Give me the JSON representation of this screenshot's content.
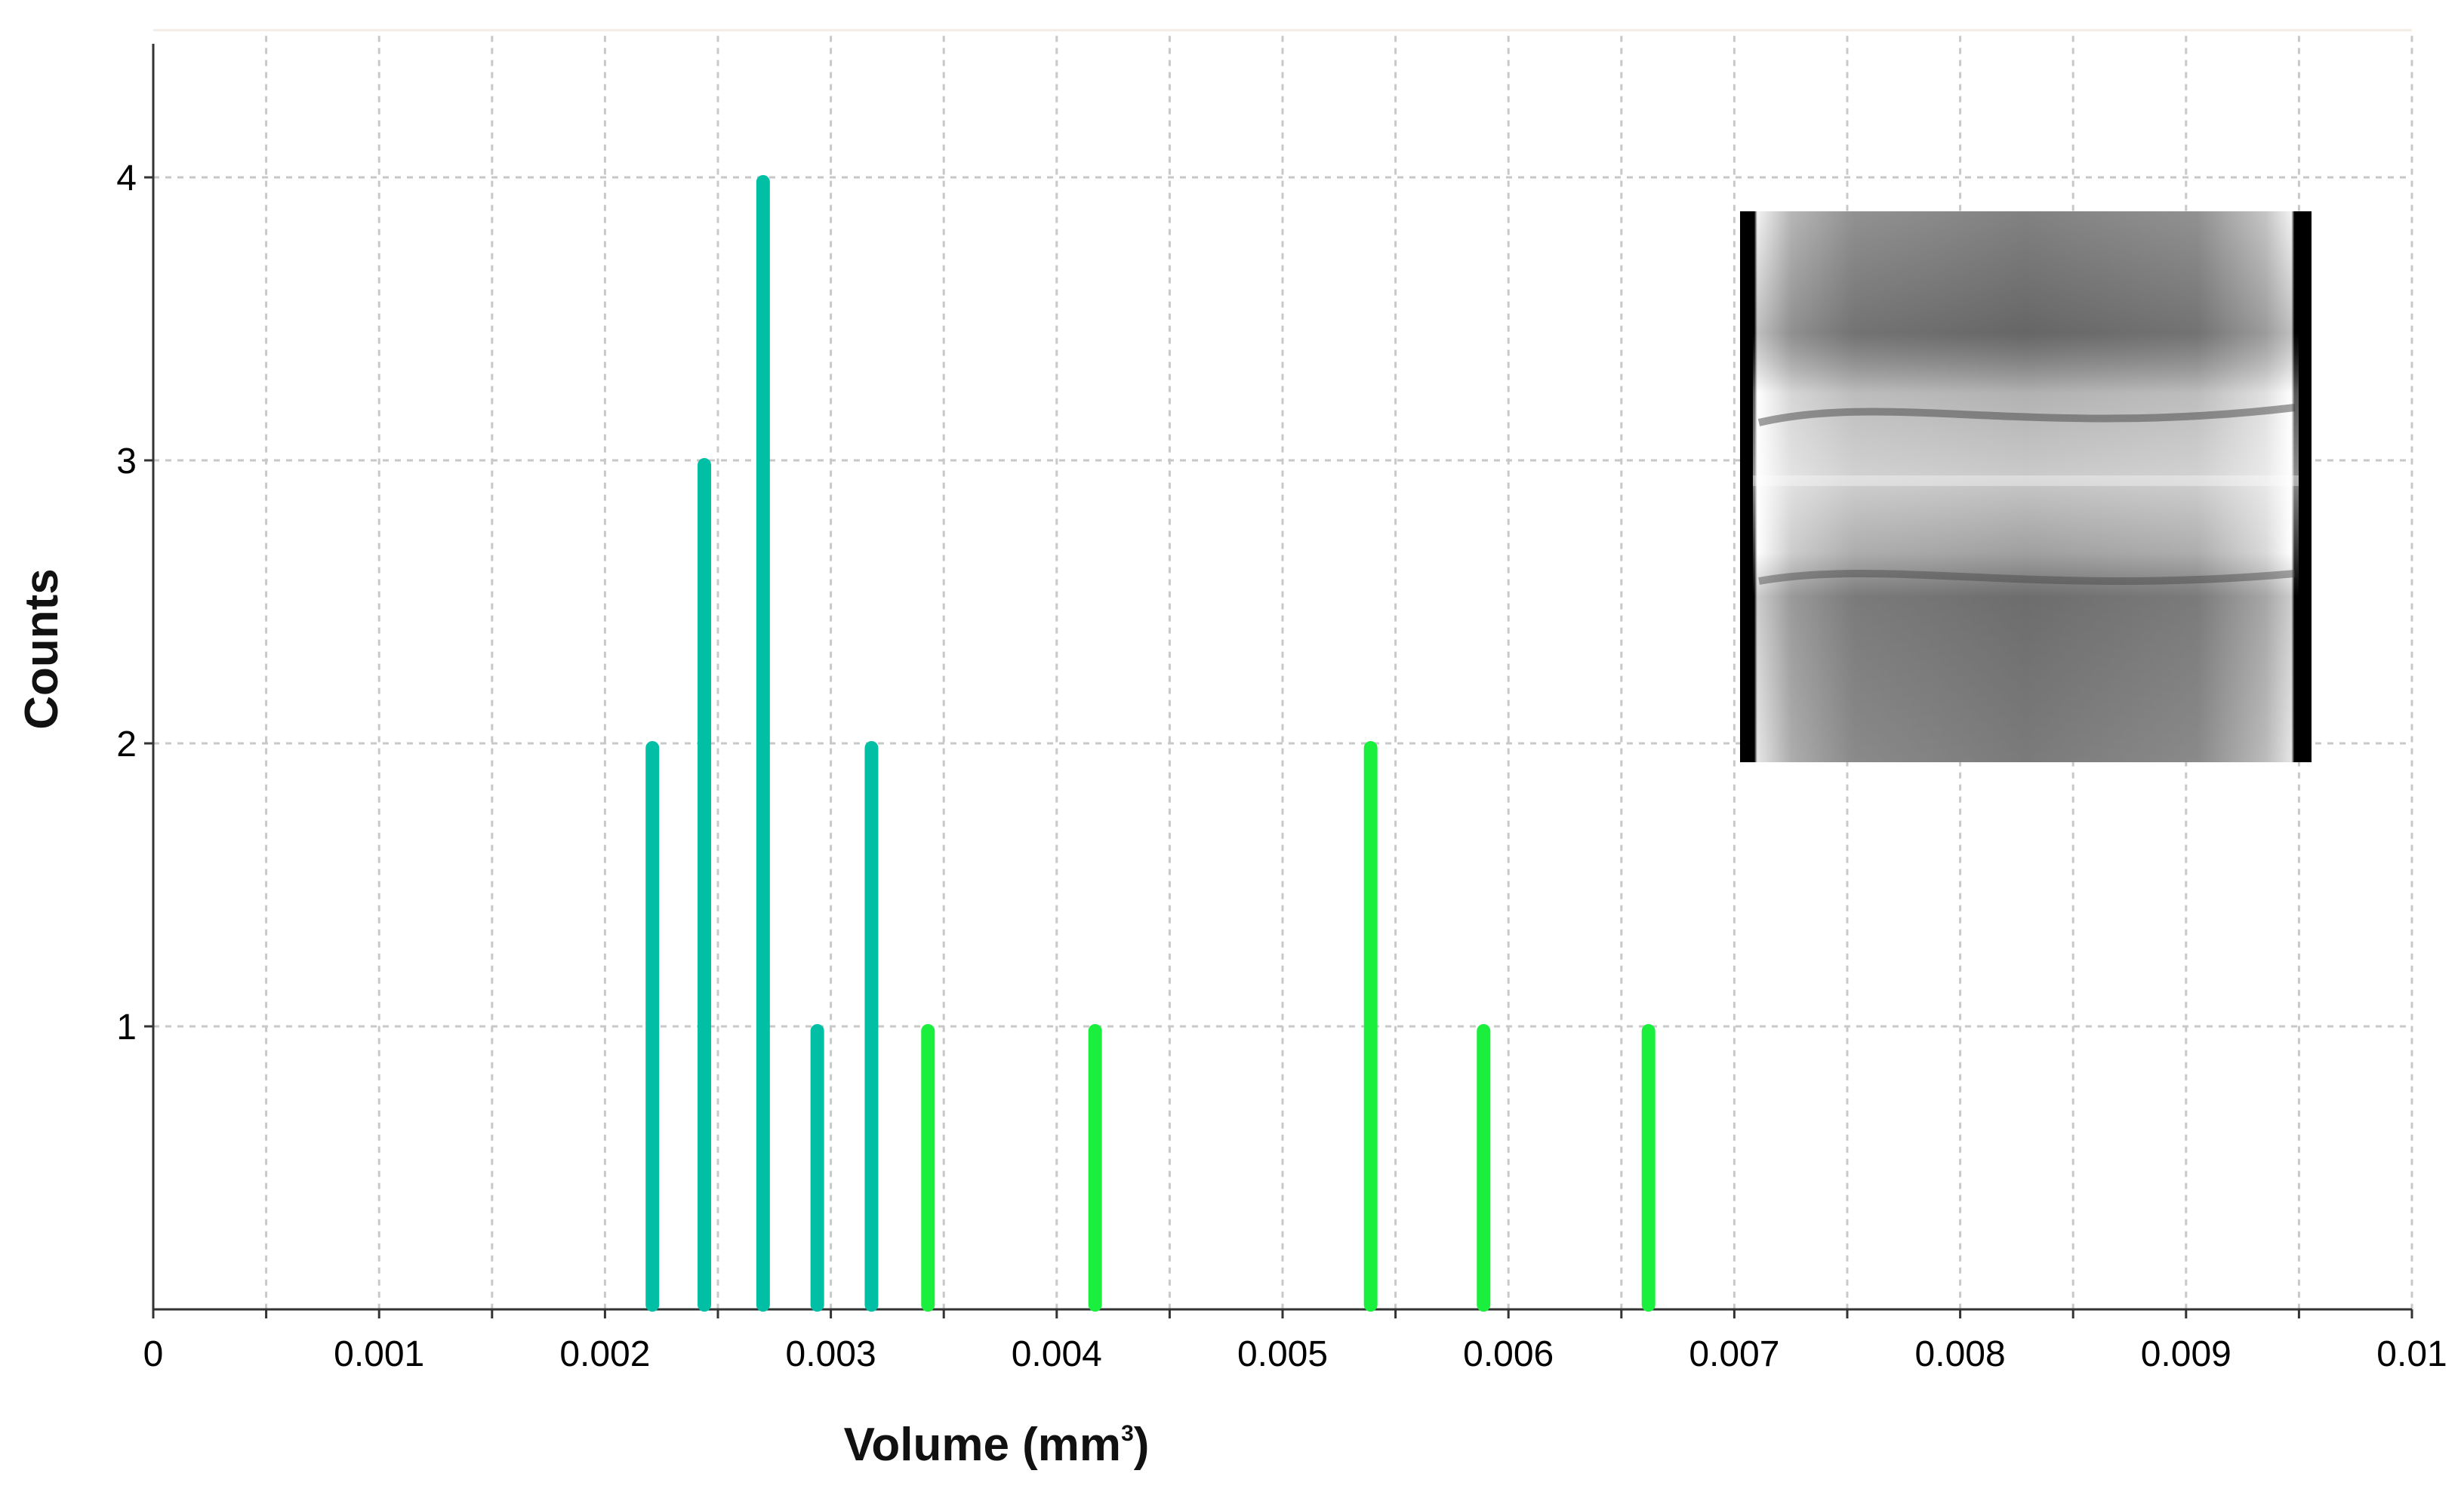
{
  "chart_data": {
    "type": "bar",
    "title": "",
    "xlabel": "Volume (mm",
    "xlabel_sup": "3",
    "xlabel_suffix": ")",
    "ylabel": "Counts",
    "xlim": [
      0,
      0.01
    ],
    "ylim": [
      0,
      4.5
    ],
    "grid": true,
    "x_ticks": [
      "0",
      "0.001",
      "0.002",
      "0.003",
      "0.004",
      "0.005",
      "0.006",
      "0.007",
      "0.008",
      "0.009",
      "0.01"
    ],
    "y_ticks": [
      "1",
      "2",
      "3",
      "4"
    ],
    "series": [
      {
        "color": "#00bfa5",
        "points": [
          {
            "x": 0.00221,
            "y": 2
          },
          {
            "x": 0.00244,
            "y": 3
          },
          {
            "x": 0.0027,
            "y": 4
          },
          {
            "x": 0.00294,
            "y": 1
          },
          {
            "x": 0.00318,
            "y": 2
          }
        ]
      },
      {
        "color": "#19ef3c",
        "points": [
          {
            "x": 0.00343,
            "y": 1
          },
          {
            "x": 0.00417,
            "y": 1
          },
          {
            "x": 0.00539,
            "y": 2
          },
          {
            "x": 0.00589,
            "y": 1
          },
          {
            "x": 0.00662,
            "y": 1
          }
        ]
      }
    ],
    "inset_image": "grayscale-ct-slice"
  }
}
